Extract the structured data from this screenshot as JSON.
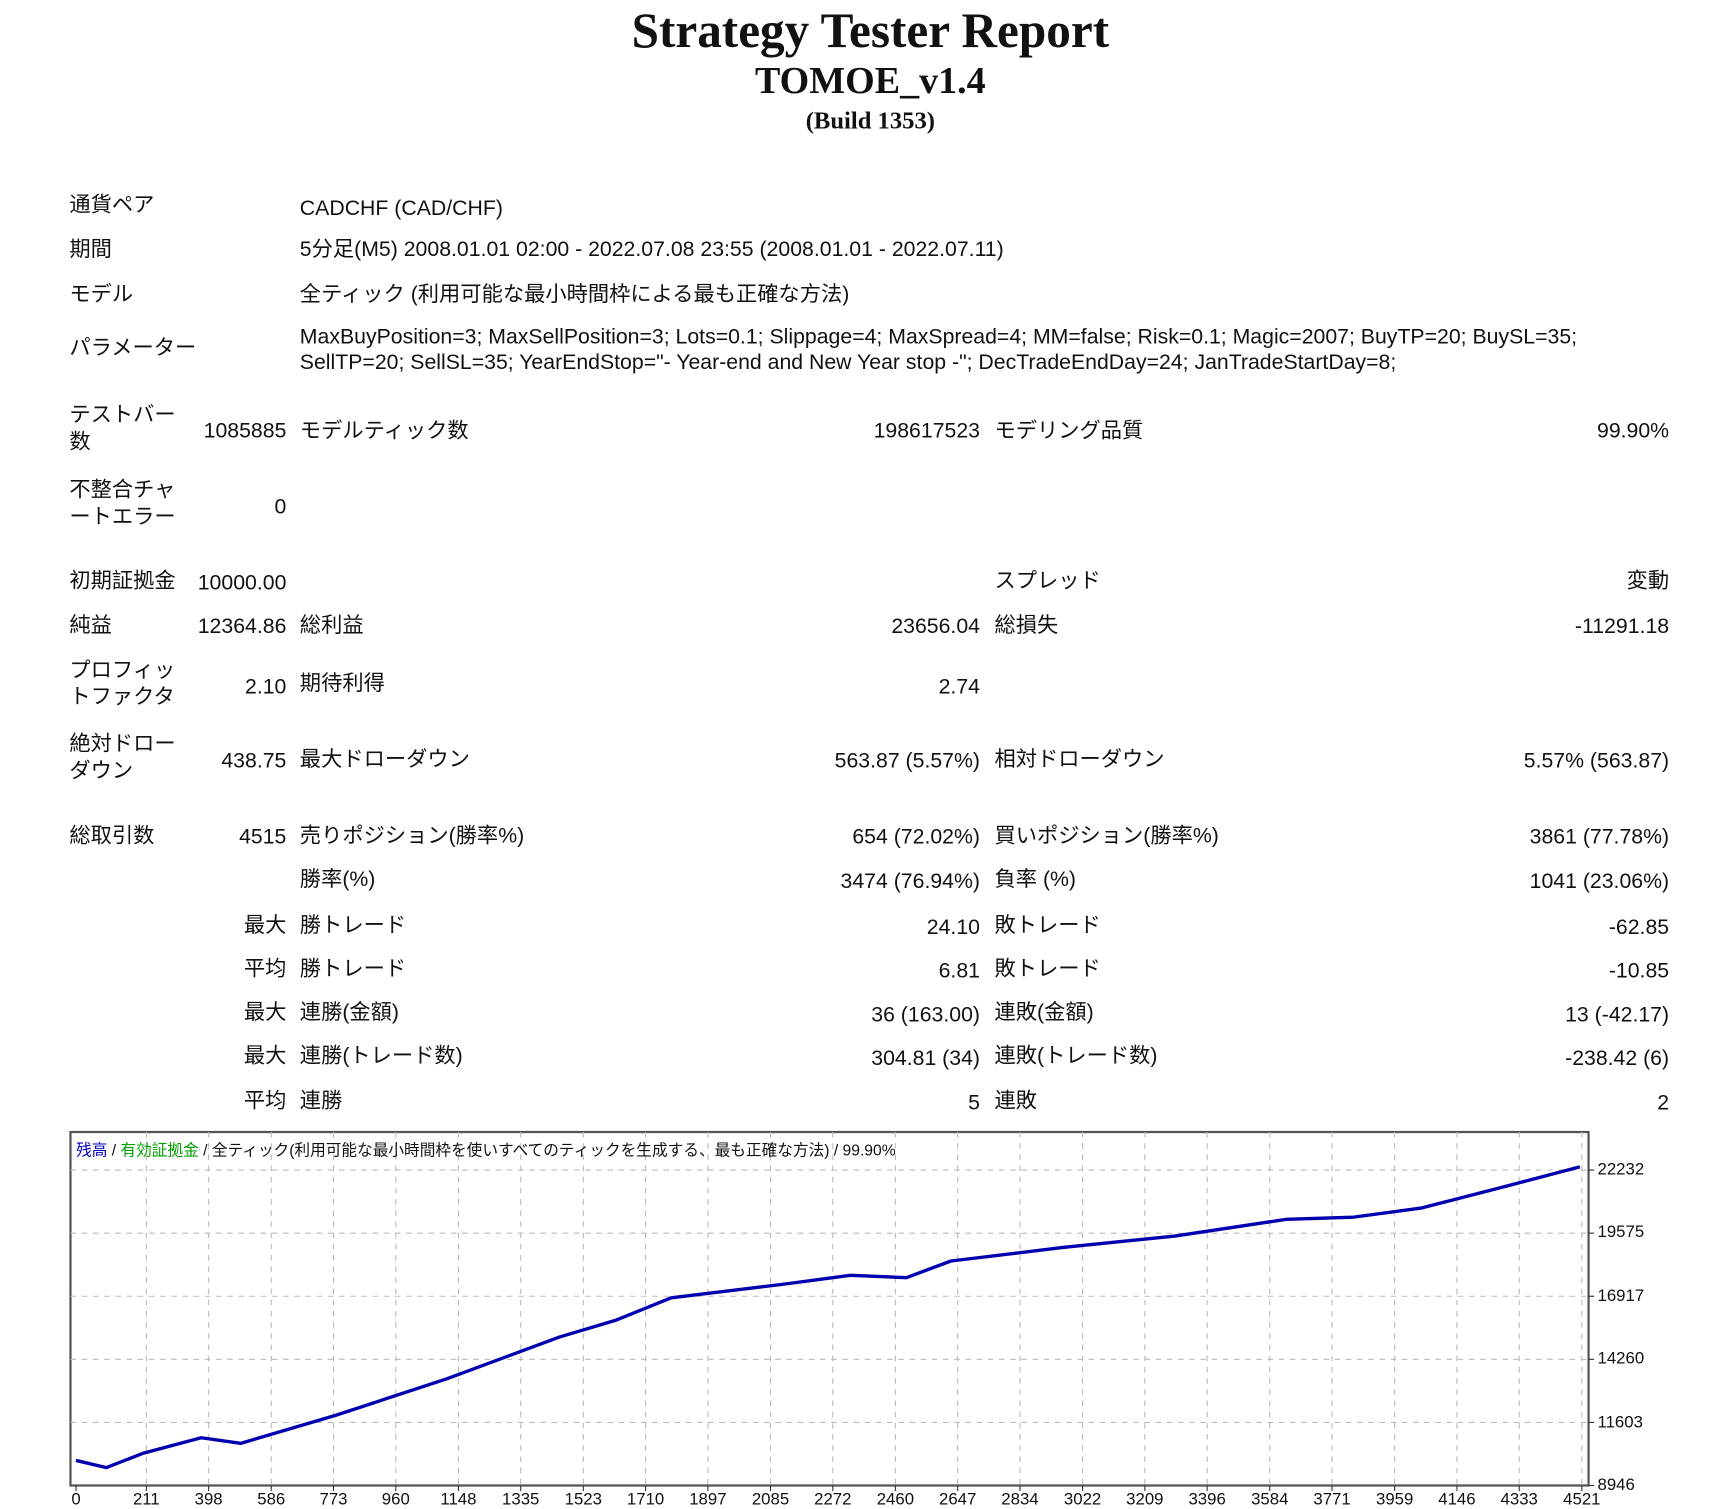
{
  "header": {
    "title": "Strategy Tester Report",
    "ea_name": "TOMOE_v1.4",
    "build": "(Build 1353)"
  },
  "info": [
    {
      "label": "通貨ペア",
      "value": "CADCHF (CAD/CHF)"
    },
    {
      "label": "期間",
      "value": "5分足(M5) 2008.01.01 02:00 - 2022.07.08 23:55 (2008.01.01 - 2022.07.11)"
    },
    {
      "label": "モデル",
      "value": "全ティック (利用可能な最小時間枠による最も正確な方法)"
    },
    {
      "label": "パラメーター",
      "value": "MaxBuyPosition=3; MaxSellPosition=3; Lots=0.1; Slippage=4; MaxSpread=4; MM=false; Risk=0.1; Magic=2007; BuyTP=20; BuySL=35;",
      "value2": "SellTP=20; SellSL=35; YearEndStop=\"- Year-end and New Year stop -\"; DecTradeEndDay=24; JanTradeStartDay=8;"
    }
  ],
  "stats": {
    "bars": {
      "label": "テストバー数",
      "value": "1085885"
    },
    "ticks": {
      "label": "モデルティック数",
      "value": "198617523"
    },
    "quality": {
      "label": "モデリング品質",
      "value": "99.90%"
    },
    "mismatch": {
      "label": "不整合チャートエラー",
      "value": "0"
    },
    "deposit": {
      "label": "初期証拠金",
      "value": "10000.00"
    },
    "spread": {
      "label": "スプレッド",
      "value": "変動"
    },
    "net": {
      "label": "純益",
      "value": "12364.86"
    },
    "gross_profit": {
      "label": "総利益",
      "value": "23656.04"
    },
    "gross_loss": {
      "label": "総損失",
      "value": "-11291.18"
    },
    "pf": {
      "label": "プロフィットファクタ",
      "value": "2.10"
    },
    "expected": {
      "label": "期待利得",
      "value": "2.74"
    },
    "abs_dd": {
      "label": "絶対ドローダウン",
      "value": "438.75"
    },
    "max_dd": {
      "label": "最大ドローダウン",
      "value": "563.87 (5.57%)"
    },
    "rel_dd": {
      "label": "相対ドローダウン",
      "value": "5.57% (563.87)"
    },
    "trades": {
      "label": "総取引数",
      "value": "4515"
    },
    "short": {
      "label": "売りポジション(勝率%)",
      "value": "654 (72.02%)"
    },
    "long": {
      "label": "買いポジション(勝率%)",
      "value": "3861 (77.78%)"
    },
    "win_rate": {
      "label": "勝率(%)",
      "value": "3474 (76.94%)"
    },
    "loss_rate": {
      "label": "負率 (%)",
      "value": "1041 (23.06%)"
    },
    "rows": [
      {
        "prefix": "最大",
        "l1": "勝トレード",
        "v1": "24.10",
        "l2": "敗トレード",
        "v2": "-62.85"
      },
      {
        "prefix": "平均",
        "l1": "勝トレード",
        "v1": "6.81",
        "l2": "敗トレード",
        "v2": "-10.85"
      },
      {
        "prefix": "最大",
        "l1": "連勝(金額)",
        "v1": "36 (163.00)",
        "l2": "連敗(金額)",
        "v2": "13 (-42.17)"
      },
      {
        "prefix": "最大",
        "l1": "連勝(トレード数)",
        "v1": "304.81 (34)",
        "l2": "連敗(トレード数)",
        "v2": "-238.42 (6)"
      },
      {
        "prefix": "平均",
        "l1": "連勝",
        "v1": "5",
        "l2": "連敗",
        "v2": "2"
      }
    ]
  },
  "chart_data": {
    "type": "line",
    "legend": {
      "balance": "残高",
      "equity": "有効証拠金",
      "model": "全ティック(利用可能な最小時間枠を使いすべてのティックを生成する、最も正確な方法)",
      "quality": "99.90%",
      "sep": " / "
    },
    "x_ticks": [
      0,
      211,
      398,
      586,
      773,
      960,
      1148,
      1335,
      1523,
      1710,
      1897,
      2085,
      2272,
      2460,
      2647,
      2834,
      3022,
      3209,
      3396,
      3584,
      3771,
      3959,
      4146,
      4333,
      4521
    ],
    "y_ticks": [
      8946,
      11603,
      14260,
      16917,
      19575,
      22232
    ],
    "xlim": [
      0,
      4521
    ],
    "ylim": [
      8946,
      22232
    ],
    "grid": true,
    "series": [
      {
        "name": "残高",
        "color": "#0000b0",
        "x": [
          0,
          91,
          200,
          376,
          494,
          779,
          1115,
          1451,
          1619,
          1787,
          2123,
          2325,
          2493,
          2627,
          2963,
          3299,
          3635,
          3836,
          4038,
          4273,
          4515
        ],
        "y": [
          10000,
          9700,
          10300,
          10960,
          10720,
          11900,
          13450,
          15200,
          15900,
          16850,
          17420,
          17800,
          17700,
          18400,
          18970,
          19450,
          20160,
          20250,
          20630,
          21480,
          22365
        ]
      }
    ]
  }
}
